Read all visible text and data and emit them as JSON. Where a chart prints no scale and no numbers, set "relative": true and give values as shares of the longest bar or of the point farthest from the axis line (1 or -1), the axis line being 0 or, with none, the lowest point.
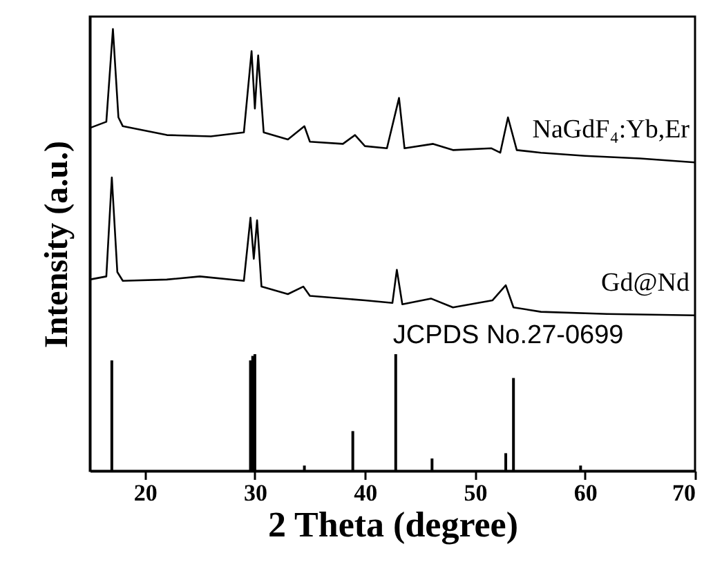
{
  "chart_data": {
    "type": "line",
    "relative": true,
    "xlabel": "2 Theta (degree)",
    "ylabel": "Intensity (a.u.)",
    "xlim": [
      15,
      70
    ],
    "xticks": [
      20,
      30,
      40,
      50,
      60,
      70
    ],
    "tick_labels": "x",
    "grid": false,
    "marker": "none",
    "line_style": "solid",
    "series": [
      {
        "name": "NaGdF₄:Yb,Er",
        "color": "#000000",
        "x": [
          15,
          16.5,
          17.1,
          17.6,
          18,
          22,
          26,
          29,
          29.7,
          30.0,
          30.3,
          30.8,
          33,
          34.5,
          35,
          38,
          39.1,
          40,
          42,
          43.1,
          43.6,
          46.2,
          48,
          51.5,
          52.3,
          53,
          53.8,
          56,
          60,
          65,
          70
        ],
        "values": [
          0.776,
          0.79,
          1.0,
          0.8,
          0.78,
          0.76,
          0.757,
          0.766,
          0.95,
          0.82,
          0.94,
          0.766,
          0.75,
          0.78,
          0.745,
          0.74,
          0.76,
          0.735,
          0.73,
          0.844,
          0.73,
          0.74,
          0.726,
          0.73,
          0.72,
          0.8,
          0.726,
          0.72,
          0.713,
          0.707,
          0.698
        ]
      },
      {
        "name": "Gd@Nd",
        "color": "#000000",
        "x": [
          15,
          16.5,
          17.0,
          17.5,
          18,
          22,
          25,
          29,
          29.6,
          29.9,
          30.2,
          30.6,
          33,
          34.4,
          35,
          40,
          42.5,
          42.9,
          43.4,
          46,
          48,
          51.6,
          52.8,
          53.5,
          56,
          62,
          70
        ],
        "values": [
          0.433,
          0.44,
          0.664,
          0.45,
          0.43,
          0.433,
          0.44,
          0.43,
          0.573,
          0.48,
          0.567,
          0.417,
          0.4,
          0.417,
          0.396,
          0.386,
          0.38,
          0.455,
          0.377,
          0.39,
          0.37,
          0.386,
          0.42,
          0.37,
          0.36,
          0.355,
          0.352
        ]
      },
      {
        "name": "JCPDS No.27-0699",
        "color": "#000000",
        "type": "bar",
        "x": [
          17.0,
          29.6,
          29.8,
          30.0,
          34.5,
          38.9,
          42.8,
          46.1,
          52.8,
          53.5,
          59.6
        ],
        "values": [
          0.25,
          0.25,
          0.26,
          0.264,
          0.012,
          0.09,
          0.264,
          0.028,
          0.04,
          0.21,
          0.012
        ]
      }
    ]
  }
}
